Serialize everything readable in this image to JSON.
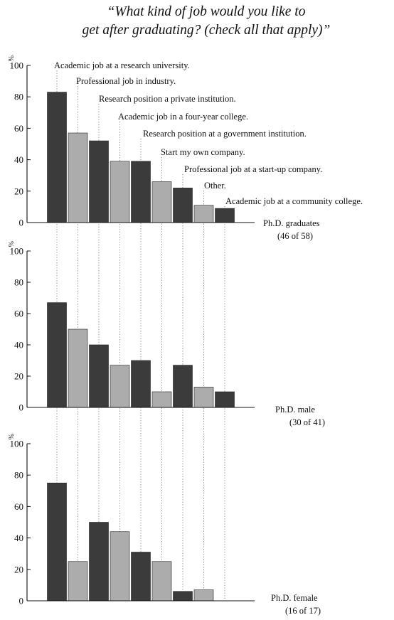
{
  "title_lines": [
    "“What kind of job would you like to",
    "get after graduating? (check all that apply)”"
  ],
  "colors": {
    "dark": "#3b3b3b",
    "light": "#acacac",
    "guide": "#8a8a8a",
    "axis": "#111111"
  },
  "chart_data": {
    "type": "bar",
    "ylim": [
      0,
      100
    ],
    "y_ticks": [
      0,
      20,
      40,
      60,
      80,
      100
    ],
    "y_unit": "%",
    "categories": [
      "Academic job at a research university.",
      "Professional job in industry.",
      "Research position a private institution.",
      "Academic job in a four-year college.",
      "Research position at a government institution.",
      "Start my own company.",
      "Professional job at a start-up company.",
      "Other.",
      "Academic job at a community college."
    ],
    "bar_shades": [
      "dark",
      "light",
      "dark",
      "light",
      "dark",
      "light",
      "dark",
      "light",
      "dark"
    ],
    "panels": [
      {
        "label_lines": [
          "Ph.D. graduates",
          "(46 of 58)"
        ],
        "values": [
          83,
          57,
          52,
          39,
          39,
          26,
          22,
          11,
          9
        ]
      },
      {
        "label_lines": [
          "Ph.D. male",
          "(30 of 41)"
        ],
        "values": [
          67,
          50,
          40,
          27,
          30,
          10,
          27,
          13,
          10
        ]
      },
      {
        "label_lines": [
          "Ph.D. female",
          "(16 of 17)"
        ],
        "values": [
          75,
          25,
          50,
          44,
          31,
          25,
          6,
          7,
          0
        ]
      }
    ]
  }
}
